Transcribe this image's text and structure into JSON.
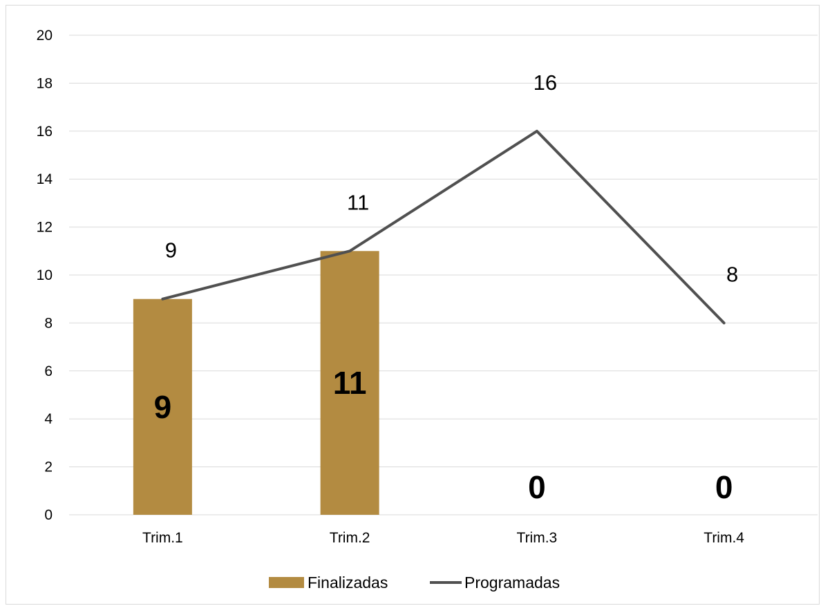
{
  "chart_data": {
    "type": "bar",
    "categories": [
      "Trim.1",
      "Trim.2",
      "Trim.3",
      "Trim.4"
    ],
    "series": [
      {
        "name": "Finalizadas",
        "type": "bar",
        "values": [
          9,
          11,
          0,
          0
        ],
        "color": "#b38b41",
        "data_labels": [
          "9",
          "11",
          "0",
          "0"
        ]
      },
      {
        "name": "Programadas",
        "type": "line",
        "values": [
          9,
          11,
          16,
          8
        ],
        "color": "#505050",
        "data_labels": [
          "9",
          "11",
          "16",
          "8"
        ]
      }
    ],
    "y_ticks": [
      "0",
      "2",
      "4",
      "6",
      "8",
      "10",
      "12",
      "14",
      "16",
      "18",
      "20"
    ],
    "ylim": [
      0,
      20
    ],
    "grid": true,
    "legend_position": "bottom",
    "title": "",
    "xlabel": "",
    "ylabel": ""
  }
}
